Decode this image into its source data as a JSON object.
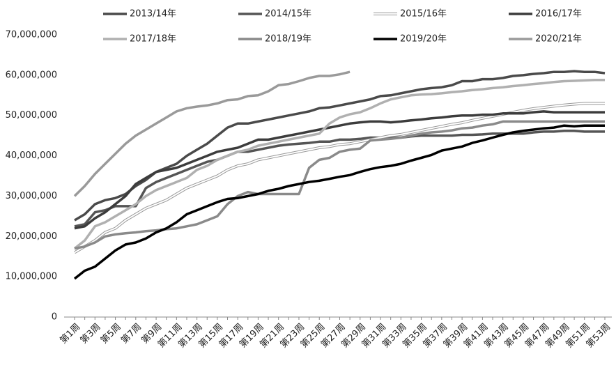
{
  "chart_data": {
    "type": "line",
    "categories": [
      "第1周",
      null,
      "第3周",
      null,
      "第5周",
      null,
      "第7周",
      null,
      "第9周",
      null,
      "第11周",
      null,
      "第13周",
      null,
      "第15周",
      null,
      "第17周",
      null,
      "第19周",
      null,
      "第21周",
      null,
      "第23周",
      null,
      "第25周",
      null,
      "第27周",
      null,
      "第29周",
      null,
      "第31周",
      null,
      "第33周",
      null,
      "第35周",
      null,
      "第37周",
      null,
      "第39周",
      null,
      "第41周",
      null,
      "第43周",
      null,
      "第45周",
      null,
      "第47周",
      null,
      "第49周",
      null,
      "第51周",
      null,
      "第53周"
    ],
    "ylim": [
      0,
      70000000
    ],
    "yticks": [
      0,
      {
        "value": 10000000,
        "label": "10,000,000"
      },
      {
        "value": 20000000,
        "label": "20,000,000"
      },
      {
        "value": 30000000,
        "label": "30,000,000"
      },
      {
        "value": 40000000,
        "label": "40,000,000"
      },
      {
        "value": 50000000,
        "label": "50,000,000"
      },
      {
        "value": 60000000,
        "label": "60,000,000"
      },
      {
        "value": 70000000,
        "label": "70,000,000"
      }
    ],
    "grid": false,
    "legend": "top",
    "series": [
      {
        "name": "2013/14年",
        "color": "#4a4a4a",
        "values": [
          24000000,
          25500000,
          28000000,
          29000000,
          29500000,
          30500000,
          32500000,
          34000000,
          36000000,
          37000000,
          38000000,
          40000000,
          41500000,
          43000000,
          45000000,
          47000000,
          48000000,
          48000000,
          48500000,
          49000000,
          49500000,
          50000000,
          50500000,
          51000000,
          51800000,
          52000000,
          52500000,
          53000000,
          53500000,
          54000000,
          54800000,
          55000000,
          55500000,
          56000000,
          56500000,
          56800000,
          57000000,
          57500000,
          58500000,
          58500000,
          59000000,
          59000000,
          59300000,
          59800000,
          60000000,
          60300000,
          60500000,
          60800000,
          60800000,
          61000000,
          60800000,
          60800000,
          60500000
        ]
      },
      {
        "name": "2014/15年",
        "color": "#555555",
        "values": [
          22500000,
          23000000,
          26000000,
          26500000,
          27500000,
          27500000,
          27500000,
          32000000,
          33500000,
          34500000,
          35500000,
          36500000,
          37500000,
          38500000,
          39000000,
          40000000,
          41000000,
          41000000,
          41500000,
          42000000,
          42500000,
          42800000,
          43000000,
          43200000,
          43500000,
          43500000,
          44000000,
          44000000,
          44200000,
          44500000,
          44500000,
          44500000,
          44500000,
          44800000,
          45000000,
          45000000,
          45000000,
          45000000,
          45200000,
          45200000,
          45300000,
          45500000,
          45500000,
          45500000,
          45500000,
          45800000,
          46000000,
          46000000,
          46200000,
          46200000,
          46000000,
          46000000,
          46000000
        ]
      },
      {
        "name": "2015/16年",
        "color": "#ffffff",
        "outline": "#999999",
        "values": [
          16000000,
          17500000,
          19000000,
          21000000,
          22000000,
          24000000,
          25500000,
          27000000,
          28000000,
          29000000,
          30500000,
          32000000,
          33000000,
          34000000,
          35000000,
          36500000,
          37500000,
          38000000,
          39000000,
          39500000,
          40000000,
          40500000,
          41000000,
          41500000,
          42000000,
          42300000,
          42800000,
          43000000,
          43500000,
          44000000,
          44500000,
          45000000,
          45300000,
          45800000,
          46300000,
          46800000,
          47300000,
          47800000,
          48200000,
          48800000,
          49300000,
          49800000,
          50300000,
          50800000,
          51300000,
          51700000,
          52000000,
          52300000,
          52600000,
          52800000,
          53000000,
          53000000,
          53000000
        ]
      },
      {
        "name": "2016/17年",
        "color": "#3c3c3c",
        "values": [
          22000000,
          22500000,
          24500000,
          26000000,
          28000000,
          30000000,
          33000000,
          34500000,
          36000000,
          36500000,
          37000000,
          38000000,
          39000000,
          40000000,
          41000000,
          41500000,
          42000000,
          43000000,
          44000000,
          44000000,
          44500000,
          45000000,
          45500000,
          46000000,
          46500000,
          47000000,
          47500000,
          48000000,
          48300000,
          48500000,
          48500000,
          48300000,
          48500000,
          48800000,
          49000000,
          49300000,
          49500000,
          49800000,
          50000000,
          50000000,
          50200000,
          50200000,
          50500000,
          50500000,
          50500000,
          50800000,
          51000000,
          50800000,
          50800000,
          50800000,
          50800000,
          50800000,
          50800000
        ]
      },
      {
        "name": "2017/18年",
        "color": "#b0b0b0",
        "values": [
          17000000,
          19000000,
          22500000,
          23500000,
          25000000,
          26500000,
          28000000,
          30000000,
          31500000,
          32500000,
          33500000,
          34500000,
          36500000,
          37500000,
          39000000,
          40000000,
          41000000,
          41500000,
          42500000,
          43000000,
          43500000,
          44000000,
          44500000,
          45000000,
          45500000,
          48000000,
          49500000,
          50300000,
          50800000,
          51800000,
          53000000,
          54000000,
          54500000,
          55000000,
          55200000,
          55300000,
          55500000,
          55800000,
          56000000,
          56300000,
          56500000,
          56800000,
          57000000,
          57300000,
          57500000,
          57800000,
          58000000,
          58300000,
          58500000,
          58600000,
          58700000,
          58800000,
          58800000
        ]
      },
      {
        "name": "2018/19年",
        "color": "#8a8a8a",
        "values": [
          17000000,
          17500000,
          18500000,
          20000000,
          20500000,
          20800000,
          21000000,
          21300000,
          21500000,
          21800000,
          22000000,
          22500000,
          23000000,
          24000000,
          25000000,
          28000000,
          30000000,
          31000000,
          30500000,
          30500000,
          30500000,
          30500000,
          30500000,
          37000000,
          39000000,
          39500000,
          41000000,
          41500000,
          41800000,
          43800000,
          44000000,
          44200000,
          44500000,
          45000000,
          45500000,
          45800000,
          46000000,
          46300000,
          46800000,
          47000000,
          47500000,
          47800000,
          48500000,
          48500000,
          48500000,
          48500000,
          48500000,
          48500000,
          48500000,
          48500000,
          48500000,
          48500000,
          48500000
        ]
      },
      {
        "name": "2019/20年",
        "color": "#000000",
        "values": [
          9500000,
          11500000,
          12500000,
          14500000,
          16500000,
          18000000,
          18500000,
          19500000,
          21000000,
          22000000,
          23500000,
          25500000,
          26500000,
          27500000,
          28500000,
          29300000,
          29500000,
          30000000,
          30500000,
          31300000,
          31800000,
          32500000,
          33000000,
          33500000,
          33800000,
          34300000,
          34800000,
          35200000,
          36000000,
          36700000,
          37200000,
          37500000,
          38000000,
          38800000,
          39500000,
          40200000,
          41300000,
          41800000,
          42300000,
          43200000,
          43800000,
          44500000,
          45200000,
          45800000,
          46200000,
          46500000,
          46800000,
          47000000,
          47500000,
          47300000,
          47500000,
          47500000,
          47500000
        ]
      },
      {
        "name": "2020/21年",
        "color": "#9a9a9a",
        "values": [
          30000000,
          32500000,
          35500000,
          38000000,
          40500000,
          43000000,
          45000000,
          46500000,
          48000000,
          49500000,
          51000000,
          51800000,
          52200000,
          52500000,
          53000000,
          53800000,
          54000000,
          54800000,
          55000000,
          56000000,
          57500000,
          57800000,
          58500000,
          59300000,
          59800000,
          59800000,
          60200000,
          60800000,
          null,
          null,
          null,
          null,
          null,
          null,
          null,
          null,
          null,
          null,
          null,
          null,
          null,
          null,
          null,
          null,
          null,
          null,
          null,
          null,
          null,
          null,
          null,
          null,
          null
        ]
      }
    ]
  }
}
